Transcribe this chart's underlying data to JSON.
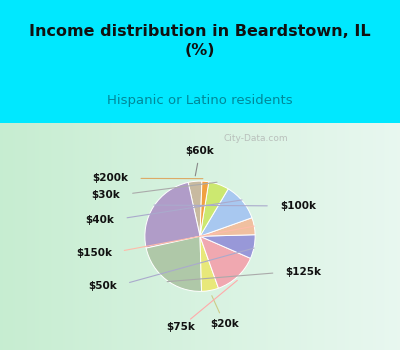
{
  "title": "Income distribution in Beardstown, IL\n(%)",
  "subtitle": "Hispanic or Latino residents",
  "labels": [
    "$60k",
    "$100k",
    "$125k",
    "$20k",
    "$75k",
    "$50k",
    "$150k",
    "$40k",
    "$30k",
    "$200k"
  ],
  "sizes": [
    4,
    25,
    22,
    5,
    13,
    7,
    5,
    11,
    6,
    2
  ],
  "colors": [
    "#c8baa0",
    "#b09cc8",
    "#afc8a8",
    "#e8e87a",
    "#f0a8b0",
    "#9898d8",
    "#f0c0a0",
    "#a8c8f0",
    "#cce870",
    "#f0a040"
  ],
  "bg_top": "#00e8ff",
  "bg_chart_left": "#b8e8c8",
  "bg_chart_right": "#e8f8f0",
  "title_color": "#111111",
  "subtitle_color": "#008899",
  "watermark": "City-Data.com",
  "label_fontsize": 7.5,
  "startangle": 88,
  "line_colors": [
    "#888888",
    "#aaaacc",
    "#aaaaaa",
    "#cccc88",
    "#ffaaaa",
    "#aaaacc",
    "#ffbbaa",
    "#aaaacc",
    "#aaaaaa",
    "#ddaa66"
  ]
}
